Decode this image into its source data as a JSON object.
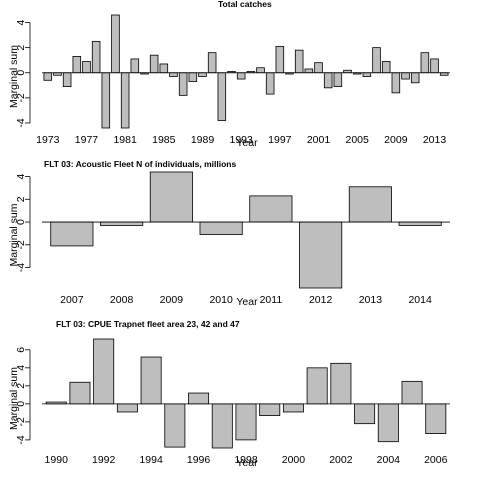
{
  "chart_data": [
    {
      "type": "bar",
      "title": "Total catches",
      "ylabel": "Marginal sum",
      "xlabel": "Year",
      "ylim": [
        -4.4,
        4.6
      ],
      "yticks": [
        -4,
        -2,
        0,
        2,
        4
      ],
      "x": [
        1973,
        1974,
        1975,
        1976,
        1977,
        1978,
        1979,
        1980,
        1981,
        1982,
        1983,
        1984,
        1985,
        1986,
        1987,
        1988,
        1989,
        1990,
        1991,
        1992,
        1993,
        1994,
        1995,
        1996,
        1997,
        1998,
        1999,
        2000,
        2001,
        2002,
        2003,
        2004,
        2005,
        2006,
        2007,
        2008,
        2009,
        2010,
        2011,
        2012,
        2013,
        2014
      ],
      "values": [
        -0.6,
        -0.2,
        -1.1,
        1.3,
        0.9,
        2.5,
        -4.4,
        4.6,
        -4.4,
        1.1,
        -0.1,
        1.4,
        0.7,
        -0.3,
        -1.8,
        -0.7,
        -0.3,
        1.6,
        -3.8,
        0.1,
        -0.5,
        0.1,
        0.4,
        -1.7,
        2.1,
        -0.1,
        1.8,
        0.3,
        0.8,
        -1.2,
        -1.1,
        0.2,
        -0.1,
        -0.3,
        2.0,
        0.9,
        -1.6,
        -0.5,
        -0.8,
        1.6,
        1.1,
        -0.2
      ],
      "xticklabels": [
        "1973",
        "1977",
        "1981",
        "1985",
        "1989",
        "1993",
        "1997",
        "2001",
        "2005",
        "2009",
        "2013"
      ]
    },
    {
      "type": "bar",
      "title": "FLT 03: Acoustic Fleet   N of individuals, millions",
      "ylabel": "Marginal sum",
      "xlabel": "Year",
      "ylim": [
        -5.8,
        4.4
      ],
      "yticks": [
        -4,
        -2,
        0,
        2,
        4
      ],
      "x": [
        2007,
        2008,
        2009,
        2010,
        2011,
        2012,
        2013,
        2014
      ],
      "values": [
        -2.1,
        -0.3,
        4.4,
        -1.1,
        2.3,
        -5.8,
        3.1,
        -0.3
      ],
      "xticklabels": [
        "2007",
        "2008",
        "2009",
        "2010",
        "2011",
        "2012",
        "2013",
        "2014"
      ]
    },
    {
      "type": "bar",
      "title": "FLT 03: CPUE Trapnet fleet area 23, 42 and 47",
      "ylabel": "Marginal sum",
      "xlabel": "Year",
      "ylim": [
        -4.9,
        7.2
      ],
      "yticks": [
        -4,
        -2,
        0,
        2,
        4,
        6
      ],
      "x": [
        1990,
        1991,
        1992,
        1993,
        1994,
        1995,
        1996,
        1997,
        1998,
        1999,
        2000,
        2001,
        2002,
        2003,
        2004,
        2005,
        2006
      ],
      "values": [
        0.2,
        2.4,
        7.2,
        -0.9,
        5.2,
        -4.8,
        1.2,
        -4.9,
        -4.0,
        -1.3,
        -0.9,
        4.0,
        4.5,
        -2.2,
        -4.2,
        2.5,
        -3.3
      ],
      "xticklabels": [
        "1990",
        "1992",
        "1994",
        "1996",
        "1998",
        "2000",
        "2002",
        "2004",
        "2006"
      ]
    }
  ]
}
